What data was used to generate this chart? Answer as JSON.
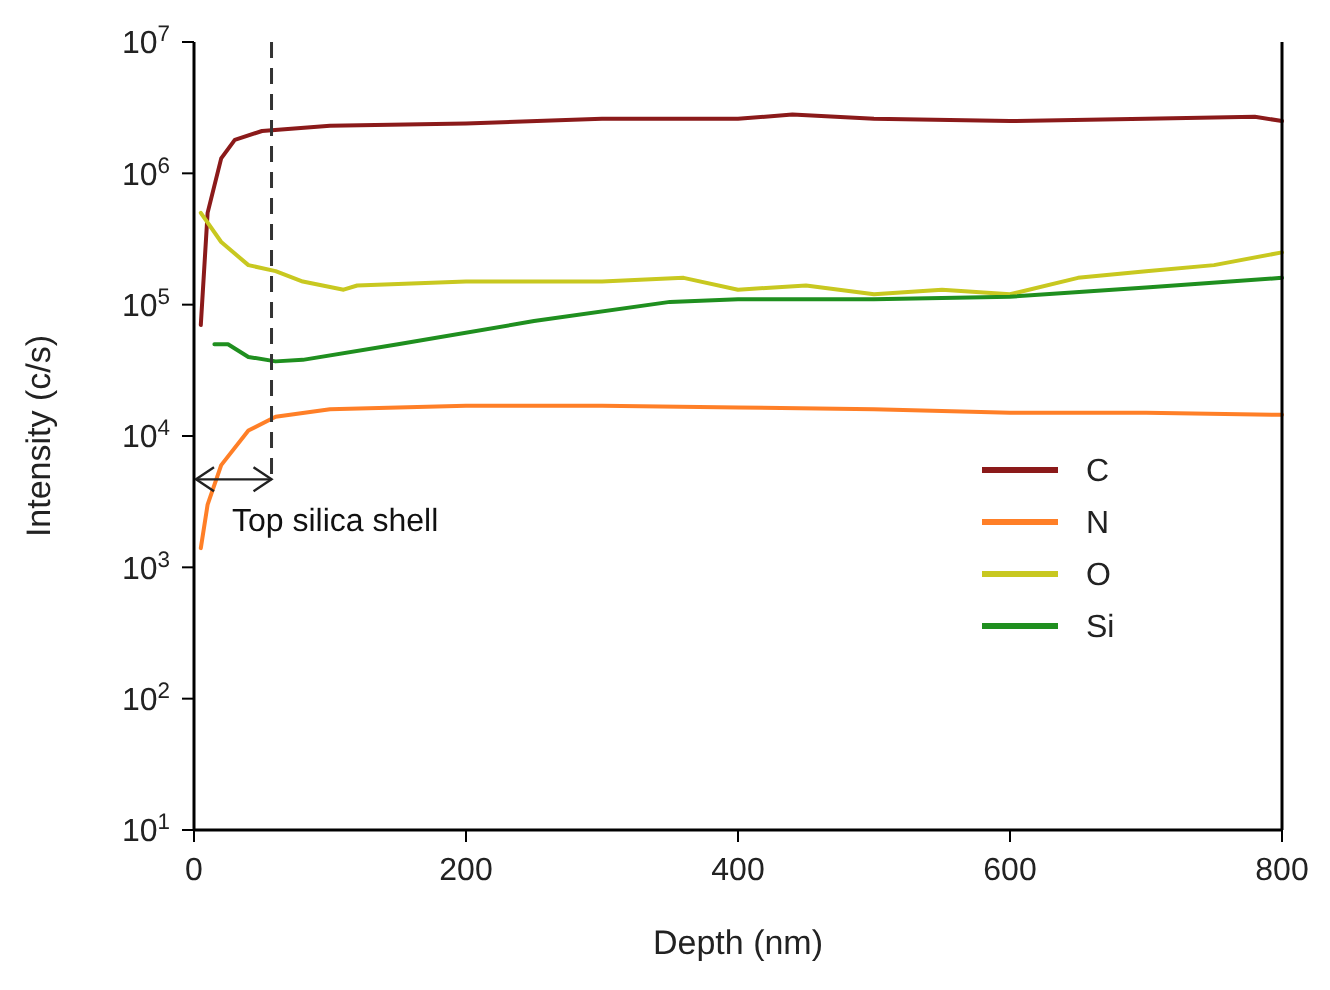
{
  "chart_data": {
    "type": "line",
    "xlabel": "Depth (nm)",
    "ylabel": "Intensity (c/s)",
    "log": "y",
    "xlim": [
      0,
      800
    ],
    "xticks": [
      0,
      200,
      400,
      600,
      800
    ],
    "ylim": [
      10,
      10000000
    ],
    "yticks": [
      {
        "value": 10,
        "label": "10$^{1}$"
      },
      {
        "value": 100,
        "label": "10$^{2}$"
      },
      {
        "value": 1000,
        "label": "10$^{3}$"
      },
      {
        "value": 10000,
        "label": "10$^{4}$"
      },
      {
        "value": 100000,
        "label": "10$^{5}$"
      },
      {
        "value": 1000000,
        "label": "10$^{6}$"
      },
      {
        "value": 10000000,
        "label": "10$^{7}$"
      }
    ],
    "grid": false,
    "legend": "bottom right",
    "marker": "none",
    "line_style": "solid",
    "ref_lines": [
      {
        "axis": "x",
        "value": 57,
        "color": "#333333",
        "line_style": "dashed"
      }
    ],
    "annotations": [
      "Top silica shell"
    ],
    "series": [
      {
        "name": "C",
        "color": "#8b1a1a",
        "x": [
          5,
          10,
          20,
          30,
          50,
          100,
          200,
          300,
          400,
          440,
          500,
          600,
          700,
          780,
          800
        ],
        "values": [
          70000,
          500000,
          1300000,
          1800000,
          2100000,
          2300000,
          2400000,
          2600000,
          2600000,
          2800000,
          2600000,
          2500000,
          2600000,
          2700000,
          2500000
        ]
      },
      {
        "name": "N",
        "color": "#ff7f27",
        "x": [
          5,
          10,
          20,
          40,
          60,
          100,
          200,
          300,
          400,
          500,
          600,
          700,
          800
        ],
        "values": [
          1400,
          3000,
          6000,
          11000,
          14000,
          16000,
          17000,
          17000,
          16500,
          16000,
          15000,
          15000,
          14500
        ]
      },
      {
        "name": "O",
        "color": "#c8c820",
        "x": [
          5,
          20,
          40,
          60,
          80,
          110,
          120,
          200,
          300,
          360,
          400,
          450,
          500,
          550,
          600,
          650,
          700,
          750,
          800
        ],
        "values": [
          500000,
          300000,
          200000,
          180000,
          150000,
          130000,
          140000,
          150000,
          150000,
          160000,
          130000,
          140000,
          120000,
          130000,
          120000,
          160000,
          180000,
          200000,
          250000
        ]
      },
      {
        "name": "Si",
        "color": "#1f8f1f",
        "x": [
          15,
          25,
          40,
          60,
          80,
          150,
          250,
          350,
          400,
          500,
          600,
          700,
          800
        ],
        "values": [
          50000,
          50000,
          40000,
          37000,
          38000,
          50000,
          75000,
          105000,
          110000,
          110000,
          115000,
          135000,
          160000
        ]
      }
    ]
  }
}
